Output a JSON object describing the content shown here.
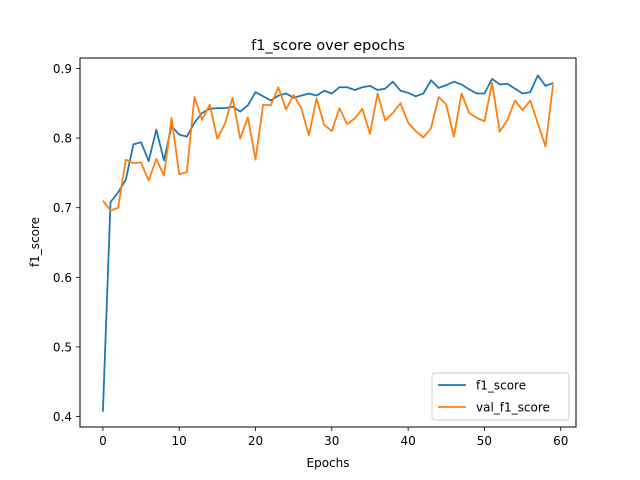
{
  "chart_data": {
    "type": "line",
    "title": "f1_score over epochs",
    "xlabel": "Epochs",
    "ylabel": "f1_score",
    "xlim": [
      -3,
      62
    ],
    "ylim": [
      0.385,
      0.915
    ],
    "xticks": [
      0,
      10,
      20,
      30,
      40,
      50,
      60
    ],
    "yticks": [
      0.4,
      0.5,
      0.6,
      0.7,
      0.8,
      0.9
    ],
    "grid": false,
    "legend_position": "lower-right",
    "x": [
      0,
      1,
      2,
      3,
      4,
      5,
      6,
      7,
      8,
      9,
      10,
      11,
      12,
      13,
      14,
      15,
      16,
      17,
      18,
      19,
      20,
      21,
      22,
      23,
      24,
      25,
      26,
      27,
      28,
      29,
      30,
      31,
      32,
      33,
      34,
      35,
      36,
      37,
      38,
      39,
      40,
      41,
      42,
      43,
      44,
      45,
      46,
      47,
      48,
      49,
      50,
      51,
      52,
      53,
      54,
      55,
      56,
      57,
      58,
      59
    ],
    "series": [
      {
        "name": "f1_score",
        "color": "#1f77b4",
        "values": [
          0.407,
          0.708,
          0.722,
          0.74,
          0.791,
          0.794,
          0.767,
          0.812,
          0.768,
          0.817,
          0.805,
          0.802,
          0.822,
          0.836,
          0.842,
          0.843,
          0.843,
          0.845,
          0.838,
          0.847,
          0.866,
          0.86,
          0.854,
          0.861,
          0.864,
          0.858,
          0.861,
          0.864,
          0.861,
          0.868,
          0.864,
          0.873,
          0.873,
          0.869,
          0.873,
          0.875,
          0.869,
          0.871,
          0.881,
          0.868,
          0.865,
          0.86,
          0.864,
          0.883,
          0.872,
          0.876,
          0.881,
          0.877,
          0.87,
          0.864,
          0.864,
          0.885,
          0.877,
          0.878,
          0.871,
          0.864,
          0.866,
          0.89,
          0.875,
          0.879
        ]
      },
      {
        "name": "val_f1_score",
        "color": "#ff7f0e",
        "values": [
          0.71,
          0.696,
          0.7,
          0.769,
          0.764,
          0.765,
          0.739,
          0.77,
          0.746,
          0.829,
          0.748,
          0.751,
          0.859,
          0.826,
          0.848,
          0.799,
          0.821,
          0.858,
          0.799,
          0.83,
          0.769,
          0.848,
          0.847,
          0.873,
          0.841,
          0.862,
          0.843,
          0.804,
          0.857,
          0.819,
          0.81,
          0.843,
          0.82,
          0.828,
          0.842,
          0.806,
          0.864,
          0.825,
          0.836,
          0.85,
          0.822,
          0.81,
          0.801,
          0.814,
          0.859,
          0.848,
          0.802,
          0.864,
          0.836,
          0.829,
          0.824,
          0.879,
          0.809,
          0.826,
          0.854,
          0.84,
          0.854,
          0.821,
          0.788,
          0.877
        ]
      }
    ]
  }
}
